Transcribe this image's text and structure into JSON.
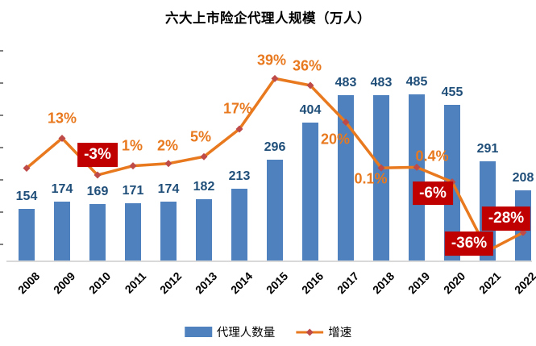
{
  "chart_data": {
    "type": "bar+line combo",
    "title": "六大上市险企代理人规模（万人）",
    "categories": [
      "2008",
      "2009",
      "2010",
      "2011",
      "2012",
      "2013",
      "2014",
      "2015",
      "2016",
      "2017",
      "2018",
      "2019",
      "2020",
      "2021",
      "2022"
    ],
    "series": [
      {
        "name": "代理人数量",
        "type": "bar",
        "color": "#4e81bd",
        "values": [
          154,
          174,
          169,
          171,
          174,
          182,
          213,
          296,
          404,
          483,
          483,
          485,
          455,
          291,
          208
        ],
        "label_color": "#1f4e79"
      },
      {
        "name": "增速",
        "type": "line",
        "color": "#e8791e",
        "marker": "diamond",
        "marker_color": "#be4b48",
        "values_pct": [
          null,
          13,
          -3,
          1,
          2,
          5,
          17,
          39,
          36,
          20,
          0.1,
          0.4,
          -6,
          -36,
          -28
        ],
        "labels": [
          "",
          "13%",
          "-3%",
          "1%",
          "2%",
          "5%",
          "17%",
          "39%",
          "36%",
          "20%",
          "0.1%",
          "0.4%",
          "-6%",
          "-36%",
          "-28%"
        ],
        "negative_label_style": {
          "background": "#c00000",
          "text": "#ffffff"
        }
      }
    ],
    "axes": {
      "x_labels_rotation_deg": -45,
      "y_left_ticks_visible": true,
      "y_left_labels_visible": false,
      "axis_line_color": "#d9d9d9"
    },
    "legend_position": "bottom"
  },
  "legend": {
    "bar_label": "代理人数量",
    "line_label": "增速"
  }
}
